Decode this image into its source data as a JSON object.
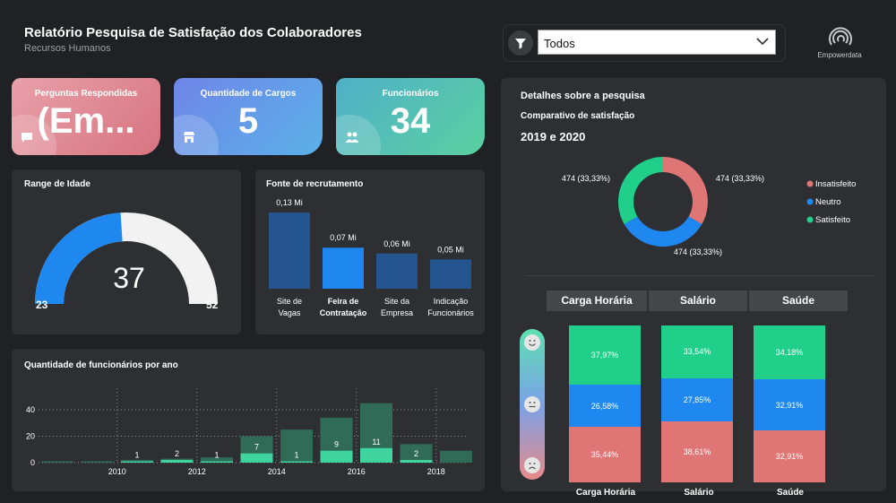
{
  "header": {
    "title": "Relatório Pesquisa de Satisfação dos Colaboradores",
    "subtitle": "Recursos Humanos"
  },
  "filter": {
    "value": "Todos"
  },
  "logo": {
    "name": "Empowerdata"
  },
  "kpis": [
    {
      "label": "Perguntas Respondidas",
      "value": "(Em...",
      "icon": "chat-icon",
      "color_from": "#e8a0a8",
      "color_to": "#d77480"
    },
    {
      "label": "Quantidade de Cargos",
      "value": "5",
      "icon": "store-icon",
      "color_from": "#6f86e8",
      "color_to": "#5ab0e8"
    },
    {
      "label": "Funcionários",
      "value": "34",
      "icon": "people-icon",
      "color_from": "#4fb0c8",
      "color_to": "#5ad0a0"
    }
  ],
  "age_gauge": {
    "title": "Range de Idade",
    "value": "37",
    "min": "23",
    "max": "52",
    "fill_fraction": 0.48,
    "fill_color": "#1e88f0",
    "track_color": "#f2f2f2"
  },
  "recruit": {
    "title": "Fonte de recrutamento",
    "chart_data": {
      "type": "bar",
      "categories": [
        "Site de Vagas",
        "Feira de Contratação",
        "Site da Empresa",
        "Indicação Funcionários"
      ],
      "cat_lines": [
        [
          "Site de",
          "Vagas"
        ],
        [
          "Feira de",
          "Contratação"
        ],
        [
          "Site da",
          "Empresa"
        ],
        [
          "Indicação",
          "Funcionários"
        ]
      ],
      "values": [
        0.13,
        0.07,
        0.06,
        0.05
      ],
      "labels": [
        "0,13 Mi",
        "0,07 Mi",
        "0,06 Mi",
        "0,05 Mi"
      ],
      "highlight_index": 1,
      "colors": {
        "normal": "#24558e",
        "highlight": "#1e88f0"
      }
    }
  },
  "yearly": {
    "title": "Quantidade de funcionários por ano",
    "chart_data": {
      "type": "bar",
      "x": [
        2009,
        2010,
        2011,
        2012,
        2013,
        2014,
        2015,
        2016,
        2017,
        2018,
        2019
      ],
      "xticks": [
        "2010",
        "2012",
        "2014",
        "2016",
        "2018"
      ],
      "yticks": [
        "0",
        "20",
        "40"
      ],
      "ylim": [
        0,
        45
      ],
      "series": [
        {
          "values": [
            1,
            1,
            2,
            3,
            4,
            20,
            25,
            34,
            45,
            14,
            9
          ],
          "color": "#2f6b57"
        },
        {
          "values": [
            0,
            0,
            1,
            2,
            1,
            7,
            1,
            9,
            11,
            2,
            0
          ],
          "color": "#3fd4a0"
        }
      ],
      "data_labels": [
        "",
        "",
        "1",
        "2",
        "1",
        "7",
        "1",
        "9",
        "11",
        "2",
        ""
      ]
    }
  },
  "survey": {
    "title": "Detalhes sobre a pesquisa",
    "subtitle": "Comparativo de satisfação",
    "years": "2019 e 2020",
    "donut": {
      "chart_data": {
        "type": "pie",
        "categories": [
          "Insatisfeito",
          "Neutro",
          "Satisfeito"
        ],
        "values": [
          474,
          474,
          474
        ],
        "labels": [
          "474 (33,33%)",
          "474 (33,33%)",
          "474 (33,33%)"
        ],
        "colors": [
          "#e07575",
          "#1e88f0",
          "#1fcf8a"
        ]
      }
    },
    "stacked": {
      "headers": [
        "Carga Horária",
        "Salário",
        "Saúde"
      ],
      "chart_data": {
        "type": "bar",
        "categories": [
          "Carga Horária",
          "Salário",
          "Saúde"
        ],
        "series": [
          {
            "name": "Insatisfeito",
            "values": [
              35.44,
              38.61,
              32.91
            ],
            "labels": [
              "35,44%",
              "38,61%",
              "32,91%"
            ],
            "color": "#e07575"
          },
          {
            "name": "Neutro",
            "values": [
              26.58,
              27.85,
              32.91
            ],
            "labels": [
              "26,58%",
              "27,85%",
              "32,91%"
            ],
            "color": "#1e88f0"
          },
          {
            "name": "Satisfeito",
            "values": [
              37.97,
              33.54,
              34.18
            ],
            "labels": [
              "37,97%",
              "33,54%",
              "34,18%"
            ],
            "color": "#1fcf8a"
          }
        ]
      }
    }
  }
}
